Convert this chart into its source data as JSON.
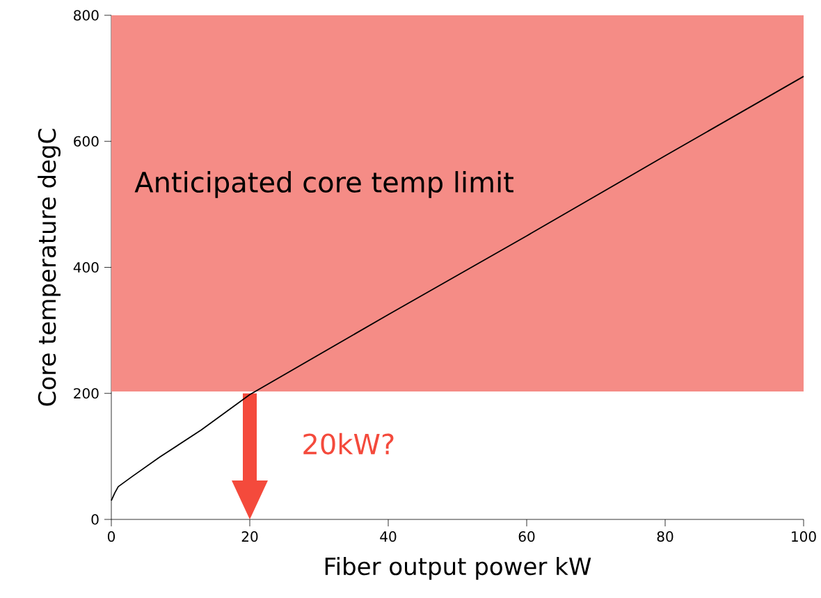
{
  "chart_data": {
    "type": "line",
    "xlabel": "Fiber output power kW",
    "ylabel": "Core temperature degC",
    "x": [
      0,
      0.5,
      1,
      3,
      7,
      13,
      20,
      40,
      60,
      80,
      100
    ],
    "series": [
      {
        "color": "#000000",
        "values": [
          30,
          42,
          52,
          68,
          99,
          142,
          198,
          325,
          450,
          577,
          703
        ]
      }
    ],
    "xlim": [
      0,
      100
    ],
    "ylim": [
      0,
      800
    ],
    "xticks": [
      0,
      20,
      40,
      60,
      80,
      100
    ],
    "yticks": [
      0,
      200,
      400,
      600,
      800
    ],
    "grid": false,
    "marker": "none",
    "line_style": "solid",
    "bands": [
      {
        "axis": "y",
        "from": 203,
        "to": 800,
        "label": "Anticipated core temp limit",
        "color": "#f58c86"
      }
    ],
    "annotations": [
      {
        "text": "20kW?",
        "x": 20,
        "y": 200
      }
    ]
  }
}
